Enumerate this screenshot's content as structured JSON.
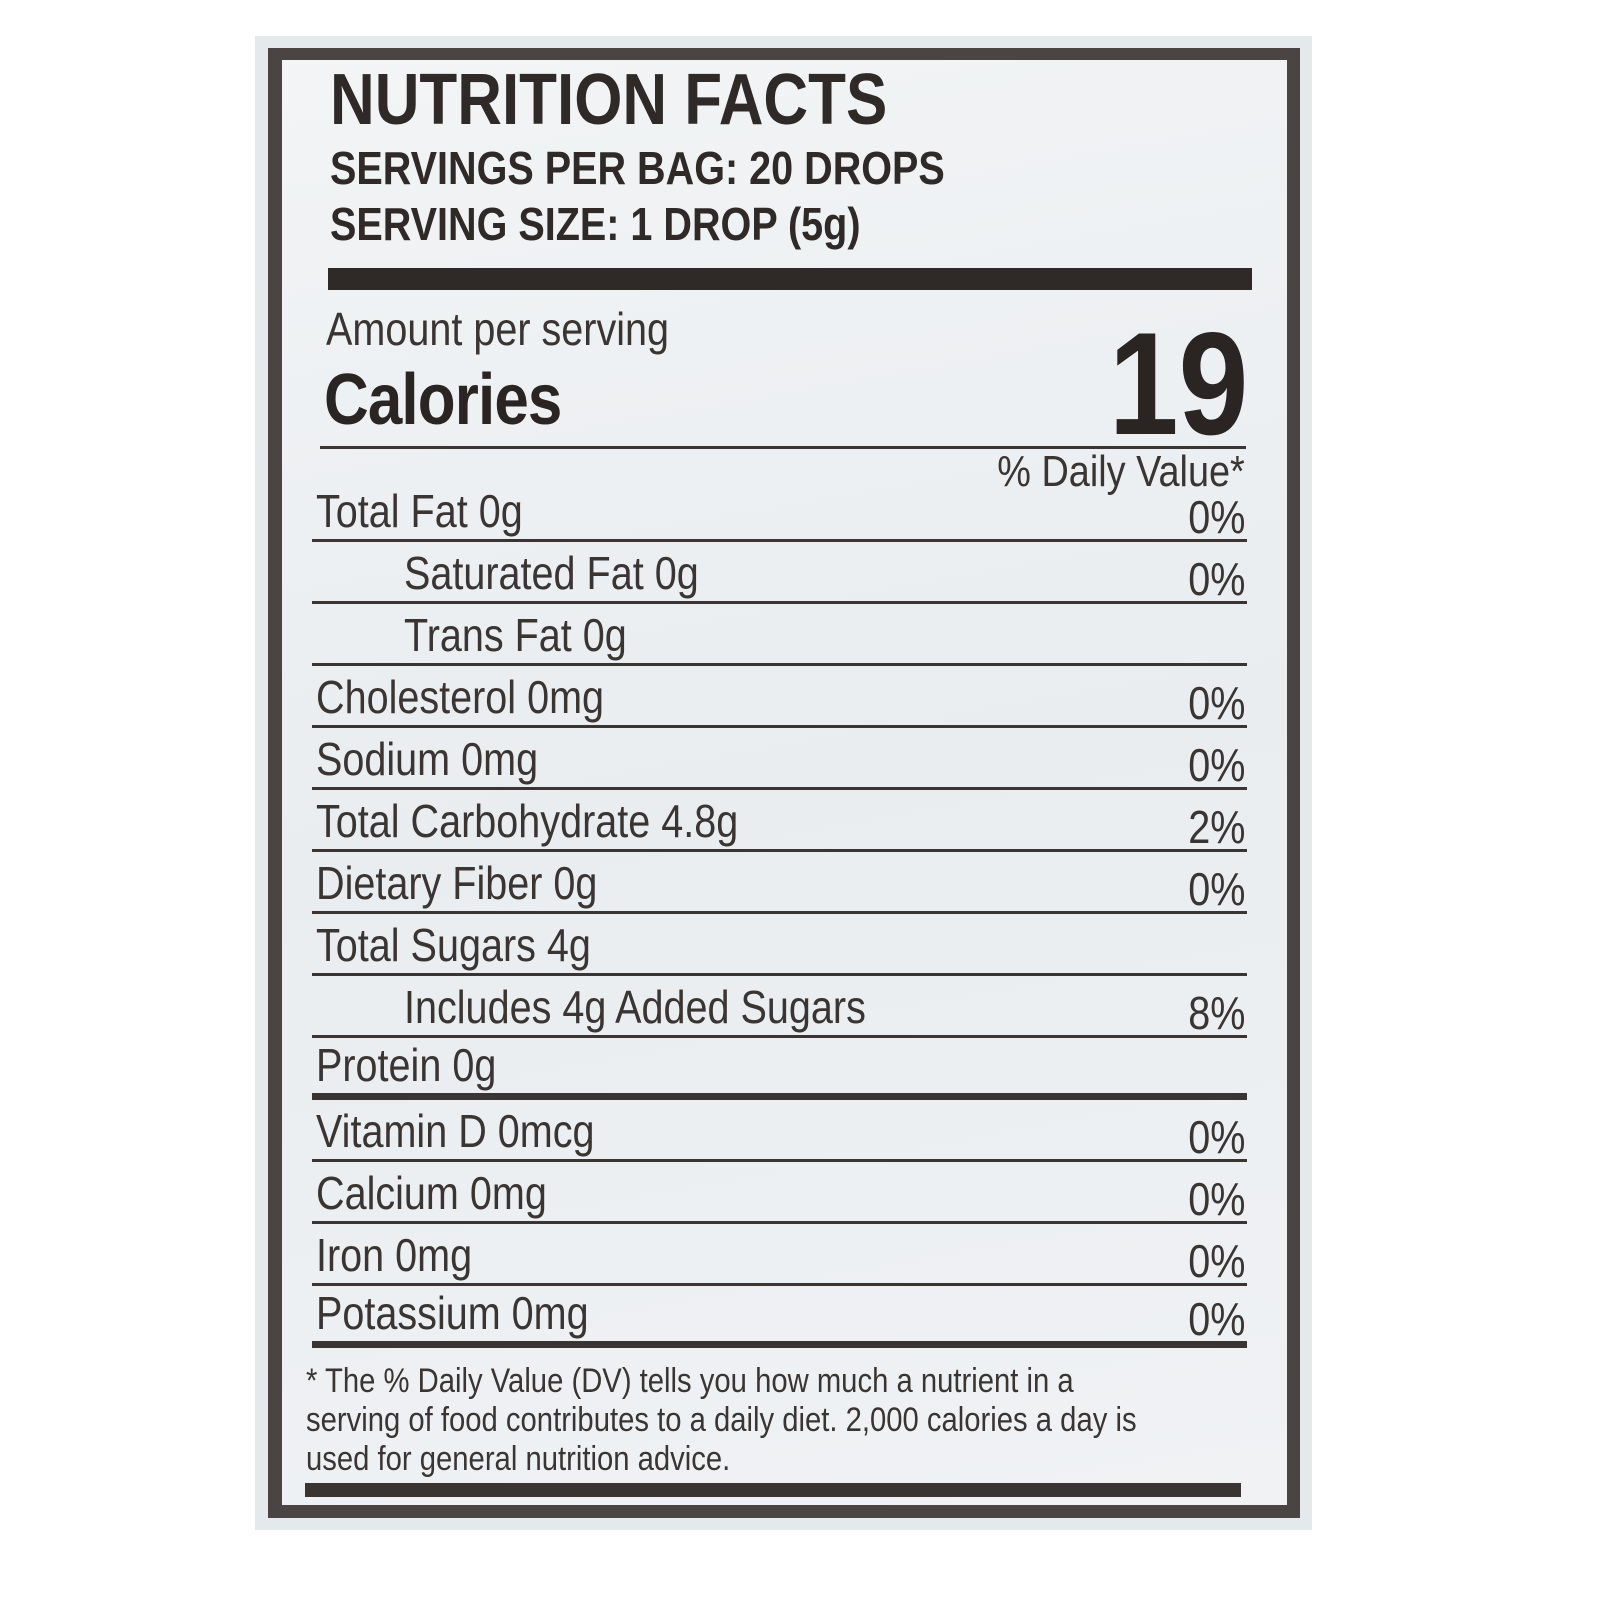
{
  "label": {
    "title": "NUTRITION FACTS",
    "servings_per_bag": "SERVINGS PER BAG: 20 DROPS",
    "serving_size": "SERVING SIZE: 1 DROP (5g)",
    "amount_per_serving": "Amount per serving",
    "calories_label": "Calories",
    "calories_value": "19",
    "daily_value_header": "% Daily Value*",
    "rows": [
      {
        "label": "Total Fat 0g",
        "dv": "0%"
      },
      {
        "label": "Saturated Fat 0g",
        "dv": "0%"
      },
      {
        "label": "Trans Fat 0g",
        "dv": ""
      },
      {
        "label": "Cholesterol 0mg",
        "dv": "0%"
      },
      {
        "label": "Sodium 0mg",
        "dv": "0%"
      },
      {
        "label": "Total Carbohydrate 4.8g",
        "dv": "2%"
      },
      {
        "label": "Dietary Fiber 0g",
        "dv": "0%"
      },
      {
        "label": "Total Sugars 4g",
        "dv": ""
      },
      {
        "label": "Includes 4g Added Sugars",
        "dv": "8%"
      },
      {
        "label": "Protein 0g",
        "dv": ""
      },
      {
        "label": "Vitamin D 0mcg",
        "dv": "0%"
      },
      {
        "label": "Calcium 0mg",
        "dv": "0%"
      },
      {
        "label": "Iron 0mg",
        "dv": "0%"
      },
      {
        "label": "Potassium 0mg",
        "dv": "0%"
      }
    ],
    "footnote": [
      "* The % Daily Value (DV) tells you how much a nutrient in a",
      "serving of food contributes to a daily diet. 2,000 calories a day is",
      "used for general nutrition advice."
    ]
  },
  "colors": {
    "ink": "#3a3533",
    "frame": "#4a4543",
    "background": "#e4e9ec"
  }
}
